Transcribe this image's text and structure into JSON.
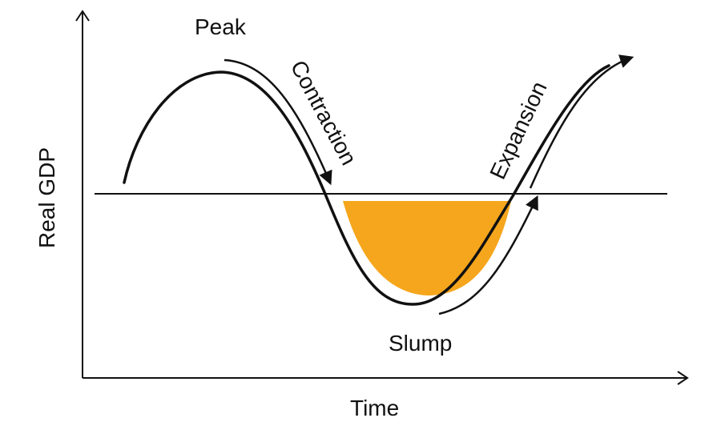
{
  "axes": {
    "x_label": "Time",
    "y_label": "Real GDP"
  },
  "phases": {
    "peak": "Peak",
    "contraction": "Contraction",
    "slump": "Slump",
    "expansion": "Expansion"
  },
  "colors": {
    "line": "#111111",
    "slump_fill": "#F5A61C",
    "background": "#ffffff"
  }
}
